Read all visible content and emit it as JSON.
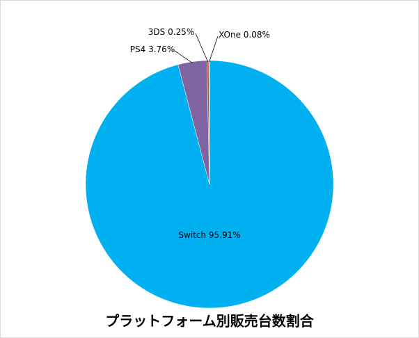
{
  "chart_data": {
    "type": "pie",
    "title": "プラットフォーム別販売台数割合",
    "categories": [
      "Switch",
      "PS4",
      "3DS",
      "XOne"
    ],
    "values": [
      95.91,
      3.76,
      0.25,
      0.08
    ],
    "value_labels": [
      "95.91%",
      "3.76%",
      "0.25%",
      "0.08%"
    ],
    "colors": [
      "#00b0f0",
      "#8064a2",
      "#c0504d",
      "#9bbb59"
    ]
  }
}
